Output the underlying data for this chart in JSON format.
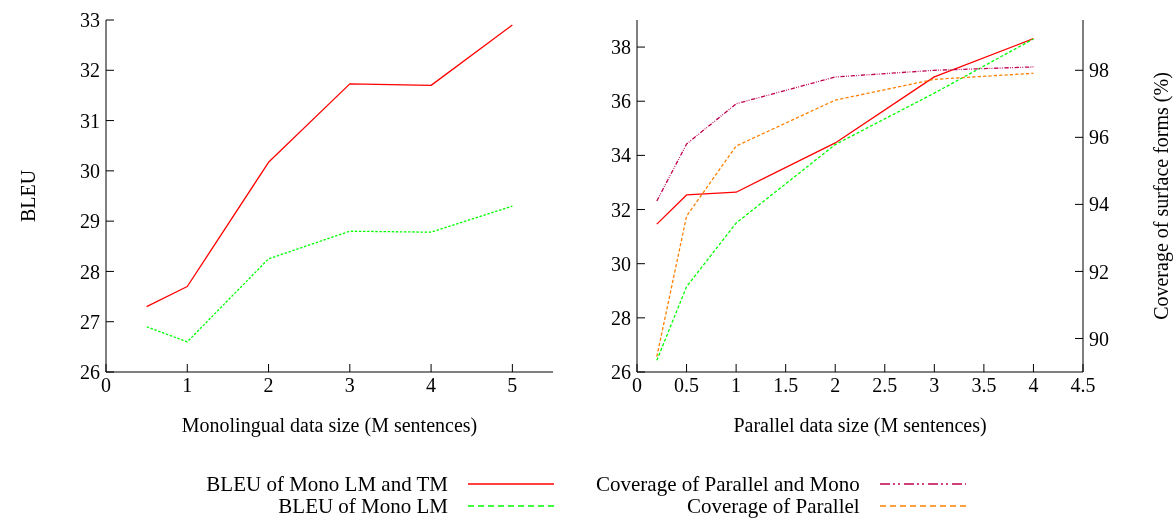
{
  "chart_data": [
    {
      "type": "line",
      "xlabel": "Monolingual data size (M sentences)",
      "ylabel": "BLEU",
      "x": [
        0.5,
        1,
        2,
        3,
        4,
        5
      ],
      "series": [
        {
          "color": "#ff0000",
          "line_style": "solid",
          "values": [
            27.3,
            27.7,
            30.17,
            31.73,
            31.7,
            32.9
          ]
        },
        {
          "color": "#00ff00",
          "line_style": "dashed",
          "values": [
            26.9,
            26.6,
            28.25,
            28.8,
            28.78,
            29.3
          ]
        }
      ],
      "xlim": [
        0,
        5.5
      ],
      "xticks": [
        0,
        1,
        2,
        3,
        4,
        5
      ],
      "ylim": [
        26,
        33
      ],
      "yticks": [
        26,
        27,
        28,
        29,
        30,
        31,
        32,
        33
      ],
      "grid": false,
      "legend": false
    },
    {
      "type": "line",
      "xlabel": "Parallel data size (M sentences)",
      "y2label": "Coverage of surface forms (%)",
      "x": [
        0.2,
        0.5,
        1,
        2,
        3,
        4
      ],
      "series": [
        {
          "name": "BLEU of Mono LM and TM",
          "color": "#ff0000",
          "line_style": "solid",
          "values": [
            31.46,
            32.54,
            32.64,
            34.46,
            36.9,
            38.31
          ]
        },
        {
          "name": "BLEU of Mono LM",
          "color": "#00ff00",
          "line_style": "dashed",
          "values": [
            26.43,
            29.15,
            31.5,
            34.4,
            36.3,
            38.3
          ]
        },
        {
          "name": "Coverage of Parallel and Mono",
          "color": "#c0004f",
          "line_style": "dotted",
          "axis": "y2",
          "values": [
            94.1,
            95.8,
            97.0,
            97.8,
            98.0,
            98.1
          ]
        },
        {
          "name": "Coverage of Parallel",
          "color": "#ff8000",
          "line_style": "dashed",
          "axis": "y2",
          "values": [
            89.46,
            93.65,
            95.74,
            97.11,
            97.73,
            97.91
          ]
        }
      ],
      "xlim": [
        0,
        4.5
      ],
      "xticks": [
        0,
        0.5,
        1,
        1.5,
        2,
        2.5,
        3,
        3.5,
        4,
        4.5
      ],
      "ylim": [
        26,
        39
      ],
      "yticks": [
        26,
        28,
        30,
        32,
        34,
        36,
        38
      ],
      "y2lim": [
        89,
        99.5
      ],
      "y2ticks": [
        90,
        92,
        94,
        96,
        98
      ],
      "grid": false,
      "legend": "bottom"
    }
  ]
}
